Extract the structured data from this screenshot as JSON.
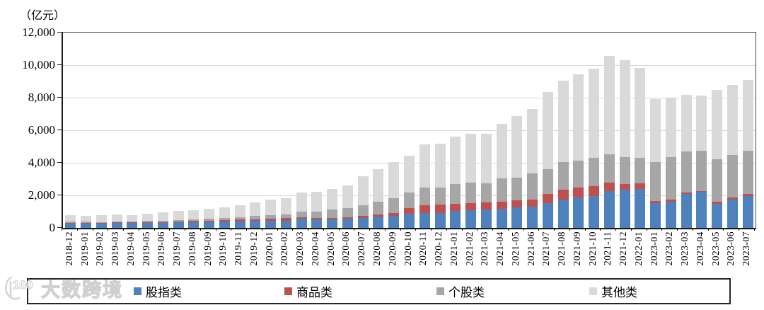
{
  "unit_label": "（亿元）",
  "watermark": {
    "logo_text": "100",
    "brand_text": "大数跨境"
  },
  "chart_data": {
    "type": "bar",
    "stacked": true,
    "unit": "亿元",
    "grid": true,
    "legend_position": "bottom",
    "ylim": [
      0,
      12000
    ],
    "ytick_interval": 2000,
    "ytick_labels": [
      "0",
      "2,000",
      "4,000",
      "6,000",
      "8,000",
      "10,000",
      "12,000"
    ],
    "categories": [
      "2018-12",
      "2019-01",
      "2019-02",
      "2019-03",
      "2019-04",
      "2019-05",
      "2019-06",
      "2019-07",
      "2019-08",
      "2019-09",
      "2019-10",
      "2019-11",
      "2019-12",
      "2020-01",
      "2020-02",
      "2020-03",
      "2020-04",
      "2020-05",
      "2020-06",
      "2020-07",
      "2020-08",
      "2020-09",
      "2020-10",
      "2020-11",
      "2020-12",
      "2021-01",
      "2021-02",
      "2021-03",
      "2021-04",
      "2021-05",
      "2021-06",
      "2021-07",
      "2021-08",
      "2021-09",
      "2021-10",
      "2021-11",
      "2021-12",
      "2022-01",
      "2023-01",
      "2023-02",
      "2023-03",
      "2023-04",
      "2023-05",
      "2023-06",
      "2023-07"
    ],
    "series": [
      {
        "name": "股指类",
        "color": "#4f81bd",
        "values": [
          270,
          260,
          260,
          290,
          290,
          305,
          320,
          335,
          345,
          360,
          375,
          390,
          420,
          435,
          450,
          550,
          520,
          535,
          550,
          620,
          680,
          740,
          885,
          910,
          910,
          1055,
          1100,
          1115,
          1170,
          1260,
          1300,
          1520,
          1735,
          1880,
          1970,
          2240,
          2330,
          2390,
          1520,
          1590,
          2100,
          2200,
          1470,
          1740,
          1950
        ]
      },
      {
        "name": "商品类",
        "color": "#c0504d",
        "values": [
          40,
          40,
          40,
          55,
          45,
          45,
          45,
          55,
          70,
          85,
          100,
          115,
          115,
          130,
          145,
          100,
          70,
          85,
          100,
          120,
          145,
          185,
          315,
          465,
          510,
          435,
          430,
          435,
          420,
          450,
          450,
          550,
          625,
          620,
          605,
          525,
          350,
          360,
          145,
          160,
          70,
          60,
          130,
          140,
          120
        ]
      },
      {
        "name": "个股类",
        "color": "#a6a6a6",
        "values": [
          90,
          75,
          60,
          45,
          70,
          70,
          85,
          100,
          115,
          115,
          130,
          160,
          190,
          215,
          230,
          335,
          420,
          495,
          550,
          660,
          765,
          885,
          970,
          1085,
          1080,
          1190,
          1260,
          1170,
          1460,
          1400,
          1600,
          1530,
          1670,
          1645,
          1715,
          1740,
          1680,
          1550,
          2395,
          2610,
          2510,
          2490,
          2600,
          2580,
          2680
        ]
      },
      {
        "name": "其他类",
        "color": "#d9d9d9",
        "values": [
          380,
          365,
          405,
          420,
          390,
          435,
          490,
          535,
          565,
          595,
          640,
          725,
          855,
          940,
          985,
          1195,
          1230,
          1285,
          1420,
          1755,
          2040,
          2220,
          2260,
          2670,
          2690,
          2910,
          3010,
          3080,
          3350,
          3770,
          3970,
          4760,
          5010,
          5285,
          5510,
          6045,
          5940,
          5520,
          3855,
          3610,
          3510,
          3395,
          4260,
          4340,
          4320
        ]
      }
    ]
  }
}
